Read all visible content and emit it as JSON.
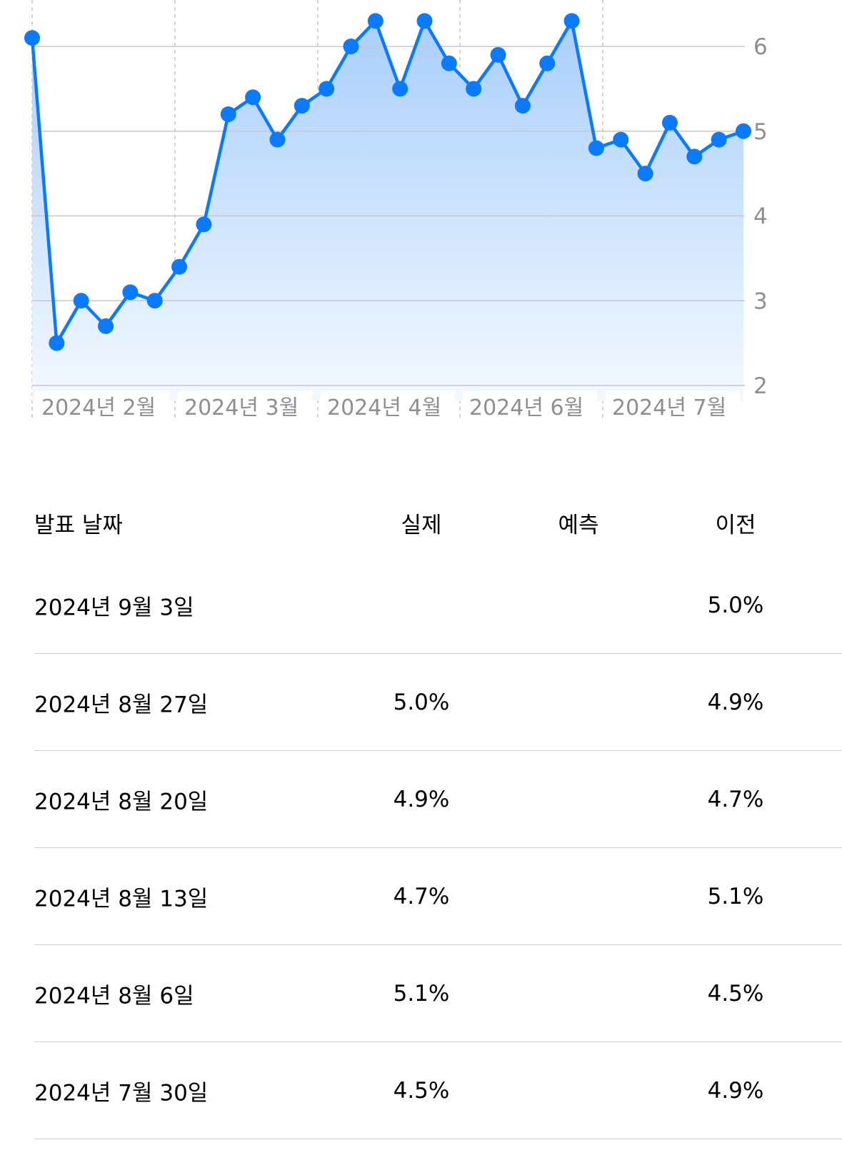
{
  "colors": {
    "line": "#0a7aff",
    "area_top": "#a8cffb",
    "area_bottom": "#f4f9ff",
    "grid": "#c7c7cc",
    "axis_text": "#8e8e93",
    "divider": "#d1d1d6"
  },
  "chart_data": {
    "type": "line",
    "y_ticks": [
      "2",
      "3",
      "4",
      "5",
      "6"
    ],
    "ylim": [
      2,
      6.35
    ],
    "x_tick_labels": [
      "2024년 2월",
      "2024년 3월",
      "2024년 4월",
      "2024년 6월",
      "2024년 7월"
    ],
    "grid": true,
    "series": [
      {
        "values": [
          6.1,
          2.5,
          3.0,
          2.7,
          3.1,
          3.0,
          3.4,
          3.9,
          5.2,
          5.4,
          4.9,
          5.3,
          5.5,
          6.0,
          6.3,
          5.5,
          6.3,
          5.8,
          5.5,
          5.9,
          5.3,
          5.8,
          6.3,
          4.8,
          4.9,
          4.5,
          5.1,
          4.7,
          4.9,
          5.0
        ]
      }
    ]
  },
  "table": {
    "headers": {
      "date": "발표 날짜",
      "actual": "실제",
      "forecast": "예측",
      "previous": "이전"
    },
    "rows": [
      {
        "date": "2024년 9월 3일",
        "actual": "",
        "forecast": "",
        "previous": "5.0%"
      },
      {
        "date": "2024년 8월 27일",
        "actual": "5.0%",
        "forecast": "",
        "previous": "4.9%"
      },
      {
        "date": "2024년 8월 20일",
        "actual": "4.9%",
        "forecast": "",
        "previous": "4.7%"
      },
      {
        "date": "2024년 8월 13일",
        "actual": "4.7%",
        "forecast": "",
        "previous": "5.1%"
      },
      {
        "date": "2024년 8월 6일",
        "actual": "5.1%",
        "forecast": "",
        "previous": "4.5%"
      },
      {
        "date": "2024년 7월 30일",
        "actual": "4.5%",
        "forecast": "",
        "previous": "4.9%"
      }
    ]
  }
}
